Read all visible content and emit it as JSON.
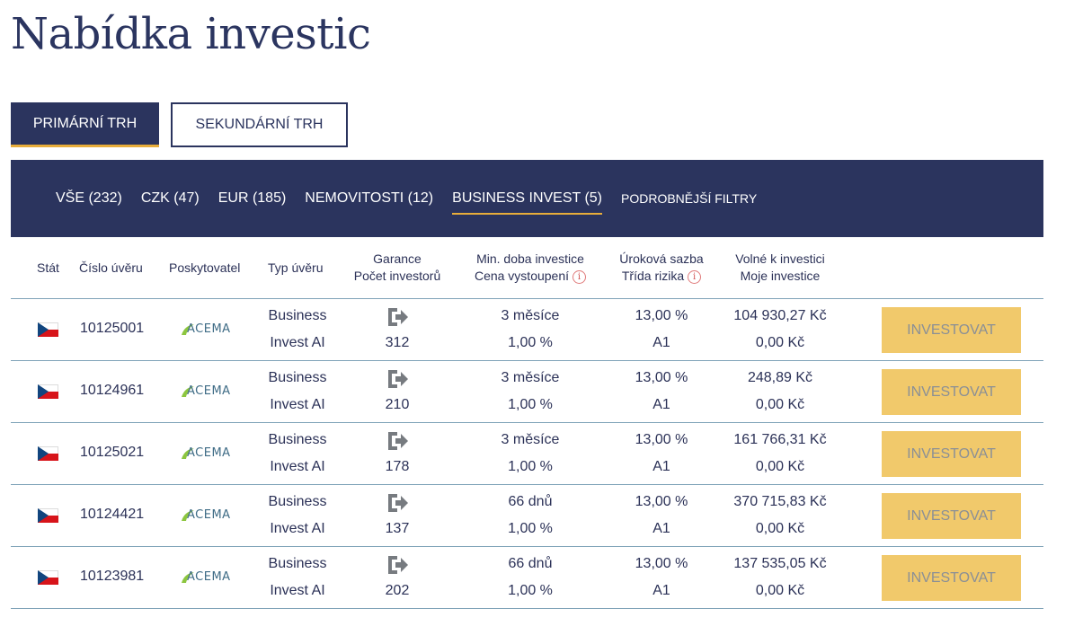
{
  "page": {
    "title": "Nabídka investic"
  },
  "market_tabs": {
    "primary": "PRIMÁRNÍ TRH",
    "secondary": "SEKUNDÁRNÍ TRH"
  },
  "filters": {
    "items": [
      {
        "label": "VŠE (232)"
      },
      {
        "label": "CZK (47)"
      },
      {
        "label": "EUR (185)"
      },
      {
        "label": "NEMOVITOSTI (12)"
      },
      {
        "label": "BUSINESS INVEST (5)"
      }
    ],
    "more": "PODROBNĚJŠÍ FILTRY"
  },
  "columns": {
    "country": "Stát",
    "loan_no": "Číslo úvěru",
    "provider": "Poskytovatel",
    "loan_type": "Typ úvěru",
    "guarantee": "Garance",
    "investors": "Počet investorů",
    "min_period": "Min. doba investice",
    "exit_price": "Cena vystoupení",
    "rate": "Úroková sazba",
    "risk": "Třída rizika",
    "available": "Volné k investici",
    "mine": "Moje investice",
    "info_glyph": "i"
  },
  "provider_logo": "ACEMA",
  "invest_label": "INVESTOVAT",
  "rows": [
    {
      "loan_no": "10125001",
      "type_1": "Business",
      "type_2": "Invest AI",
      "investors": "312",
      "period": "3 měsíce",
      "exit": "1,00 %",
      "rate": "13,00 %",
      "risk": "A1",
      "available": "104 930,27 Kč",
      "mine": "0,00 Kč"
    },
    {
      "loan_no": "10124961",
      "type_1": "Business",
      "type_2": "Invest AI",
      "investors": "210",
      "period": "3 měsíce",
      "exit": "1,00 %",
      "rate": "13,00 %",
      "risk": "A1",
      "available": "248,89 Kč",
      "mine": "0,00 Kč"
    },
    {
      "loan_no": "10125021",
      "type_1": "Business",
      "type_2": "Invest AI",
      "investors": "178",
      "period": "3 měsíce",
      "exit": "1,00 %",
      "rate": "13,00 %",
      "risk": "A1",
      "available": "161 766,31 Kč",
      "mine": "0,00 Kč"
    },
    {
      "loan_no": "10124421",
      "type_1": "Business",
      "type_2": "Invest AI",
      "investors": "137",
      "period": "66 dnů",
      "exit": "1,00 %",
      "rate": "13,00 %",
      "risk": "A1",
      "available": "370 715,83 Kč",
      "mine": "0,00 Kč"
    },
    {
      "loan_no": "10123981",
      "type_1": "Business",
      "type_2": "Invest AI",
      "investors": "202",
      "period": "66 dnů",
      "exit": "1,00 %",
      "rate": "13,00 %",
      "risk": "A1",
      "available": "137 535,05 Kč",
      "mine": "0,00 Kč"
    }
  ],
  "icons": {
    "flag": "czech-flag-icon",
    "guarantee": "guarantee-exit-icon",
    "info": "info-icon"
  },
  "colors": {
    "navy": "#2b345e",
    "accent": "#e8ad3a",
    "button": "#f1c96b",
    "divider": "#7fa3b8"
  }
}
